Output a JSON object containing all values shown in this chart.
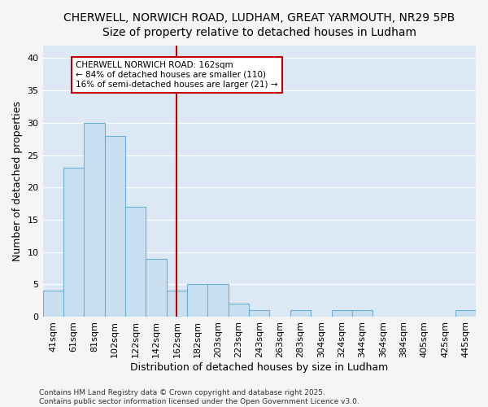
{
  "title_line1": "CHERWELL, NORWICH ROAD, LUDHAM, GREAT YARMOUTH, NR29 5PB",
  "title_line2": "Size of property relative to detached houses in Ludham",
  "xlabel": "Distribution of detached houses by size in Ludham",
  "ylabel": "Number of detached properties",
  "categories": [
    "41sqm",
    "61sqm",
    "81sqm",
    "102sqm",
    "122sqm",
    "142sqm",
    "162sqm",
    "182sqm",
    "203sqm",
    "223sqm",
    "243sqm",
    "263sqm",
    "283sqm",
    "304sqm",
    "324sqm",
    "344sqm",
    "364sqm",
    "384sqm",
    "405sqm",
    "425sqm",
    "445sqm"
  ],
  "values": [
    4,
    23,
    30,
    28,
    17,
    9,
    4,
    5,
    5,
    2,
    1,
    0,
    1,
    0,
    1,
    1,
    0,
    0,
    0,
    0,
    1
  ],
  "bar_color": "#c9dff0",
  "bar_edge_color": "#6baed6",
  "marker_color": "#c00000",
  "annotation_title": "CHERWELL NORWICH ROAD: 162sqm",
  "annotation_line1": "← 84% of detached houses are smaller (110)",
  "annotation_line2": "16% of semi-detached houses are larger (21) →",
  "ylim": [
    0,
    42
  ],
  "yticks": [
    0,
    5,
    10,
    15,
    20,
    25,
    30,
    35,
    40
  ],
  "footer_line1": "Contains HM Land Registry data © Crown copyright and database right 2025.",
  "footer_line2": "Contains public sector information licensed under the Open Government Licence v3.0.",
  "fig_bg_color": "#f5f5f5",
  "plot_bg_color": "#dce9f5",
  "grid_color": "#ffffff",
  "title1_fontsize": 10,
  "title2_fontsize": 9,
  "axis_label_fontsize": 9,
  "tick_fontsize": 8,
  "annotation_fontsize": 7.5,
  "footer_fontsize": 6.5
}
